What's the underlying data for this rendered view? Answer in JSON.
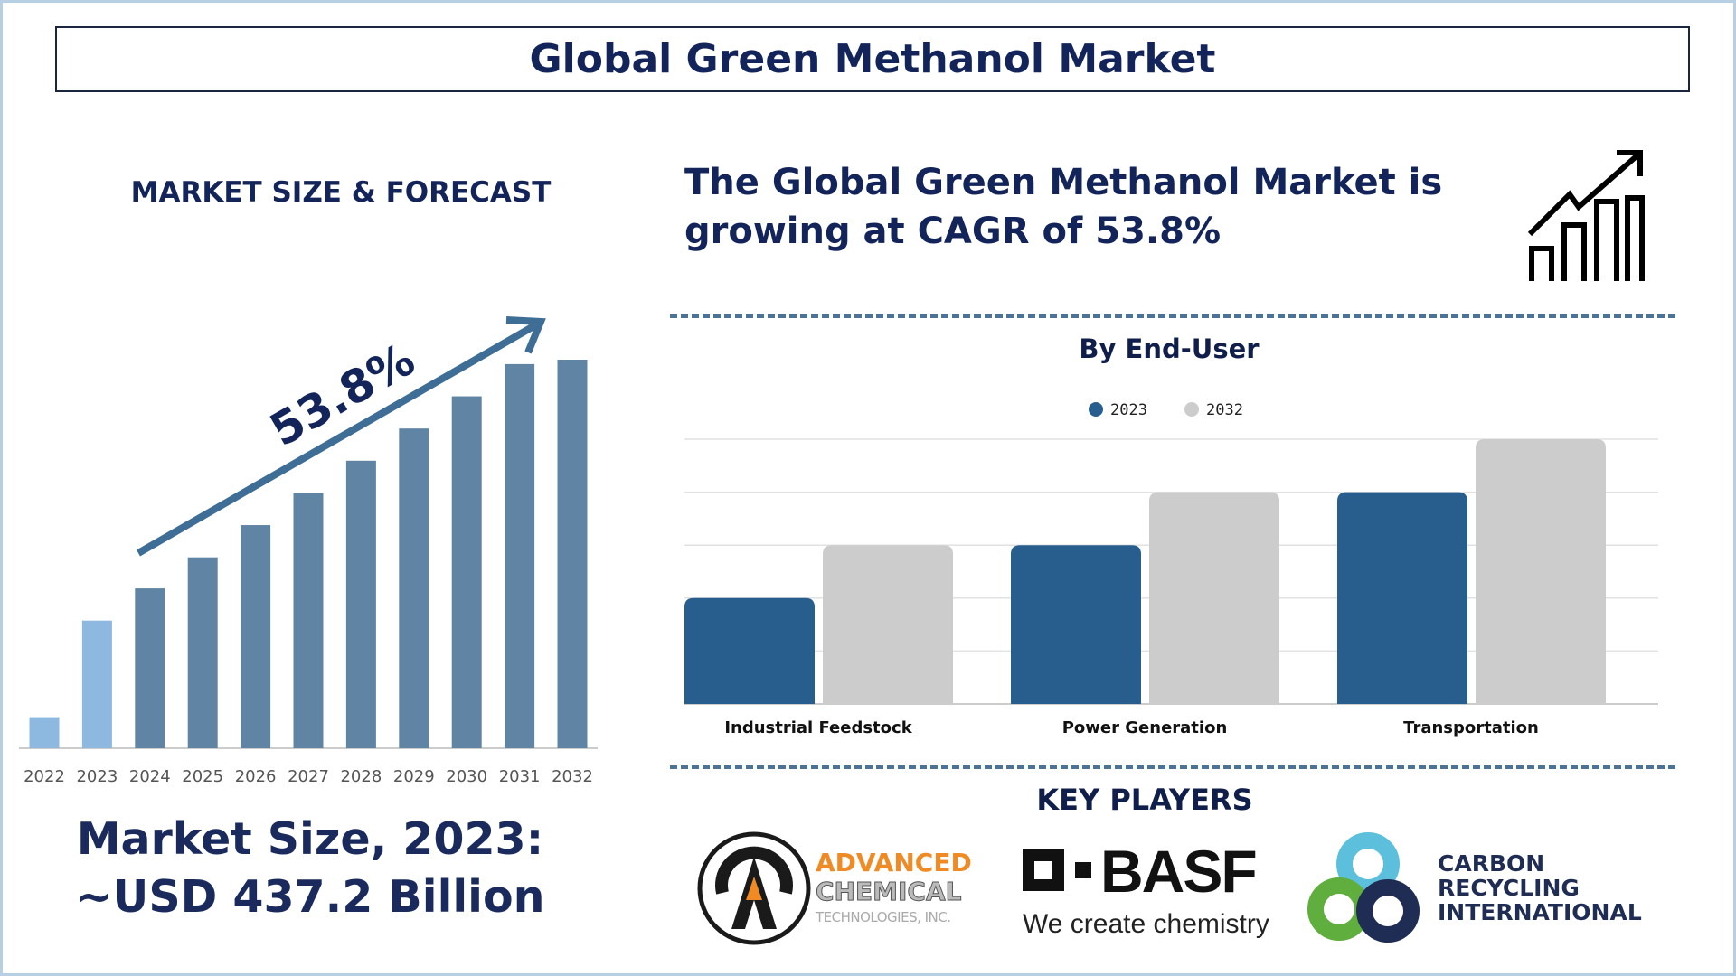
{
  "title": "Global Green Methanol Market",
  "left": {
    "heading": "MARKET SIZE & FORECAST",
    "cagr_label": "53.8%",
    "market_size_line1": "Market Size, 2023:",
    "market_size_line2": "~USD 437.2 Billion"
  },
  "right": {
    "cagr_line1": "The Global Green Methanol Market is",
    "cagr_line2": "growing at CAGR of 53.8%",
    "icon": "growth-chart-icon",
    "key_players_heading": "KEY PLAYERS",
    "players": [
      {
        "name": "Advanced Chemical Technologies, Inc.",
        "line1": "ADVANCED",
        "line2": "CHEMICAL",
        "line3": "TECHNOLOGIES, INC."
      },
      {
        "name": "BASF",
        "wordmark": "BASF",
        "tagline": "We create chemistry"
      },
      {
        "name": "Carbon Recycling International",
        "line1": "CARBON",
        "line2": "RECYCLING",
        "line3": "INTERNATIONAL"
      }
    ]
  },
  "chart_data": [
    {
      "type": "bar",
      "title": "",
      "categories": [
        "2022",
        "2023",
        "2024",
        "2025",
        "2026",
        "2027",
        "2028",
        "2029",
        "2030",
        "2031",
        "2032"
      ],
      "values": [
        28,
        115,
        144,
        172,
        201,
        230,
        259,
        288,
        317,
        346,
        350
      ],
      "highlight_color": "#8db8e0",
      "bar_color": "#6084a3",
      "annotation": "53.8%",
      "grid": false
    },
    {
      "type": "bar",
      "title": "By End-User",
      "categories": [
        "Industrial Feedstock",
        "Power Generation",
        "Transportation"
      ],
      "series": [
        {
          "name": "2023",
          "values": [
            2,
            3,
            4
          ],
          "color": "#285e8e"
        },
        {
          "name": "2032",
          "values": [
            3,
            4,
            5
          ],
          "color": "#cccccc"
        }
      ],
      "ylim": [
        0,
        5
      ],
      "grid": true,
      "legend": "top-center"
    }
  ]
}
